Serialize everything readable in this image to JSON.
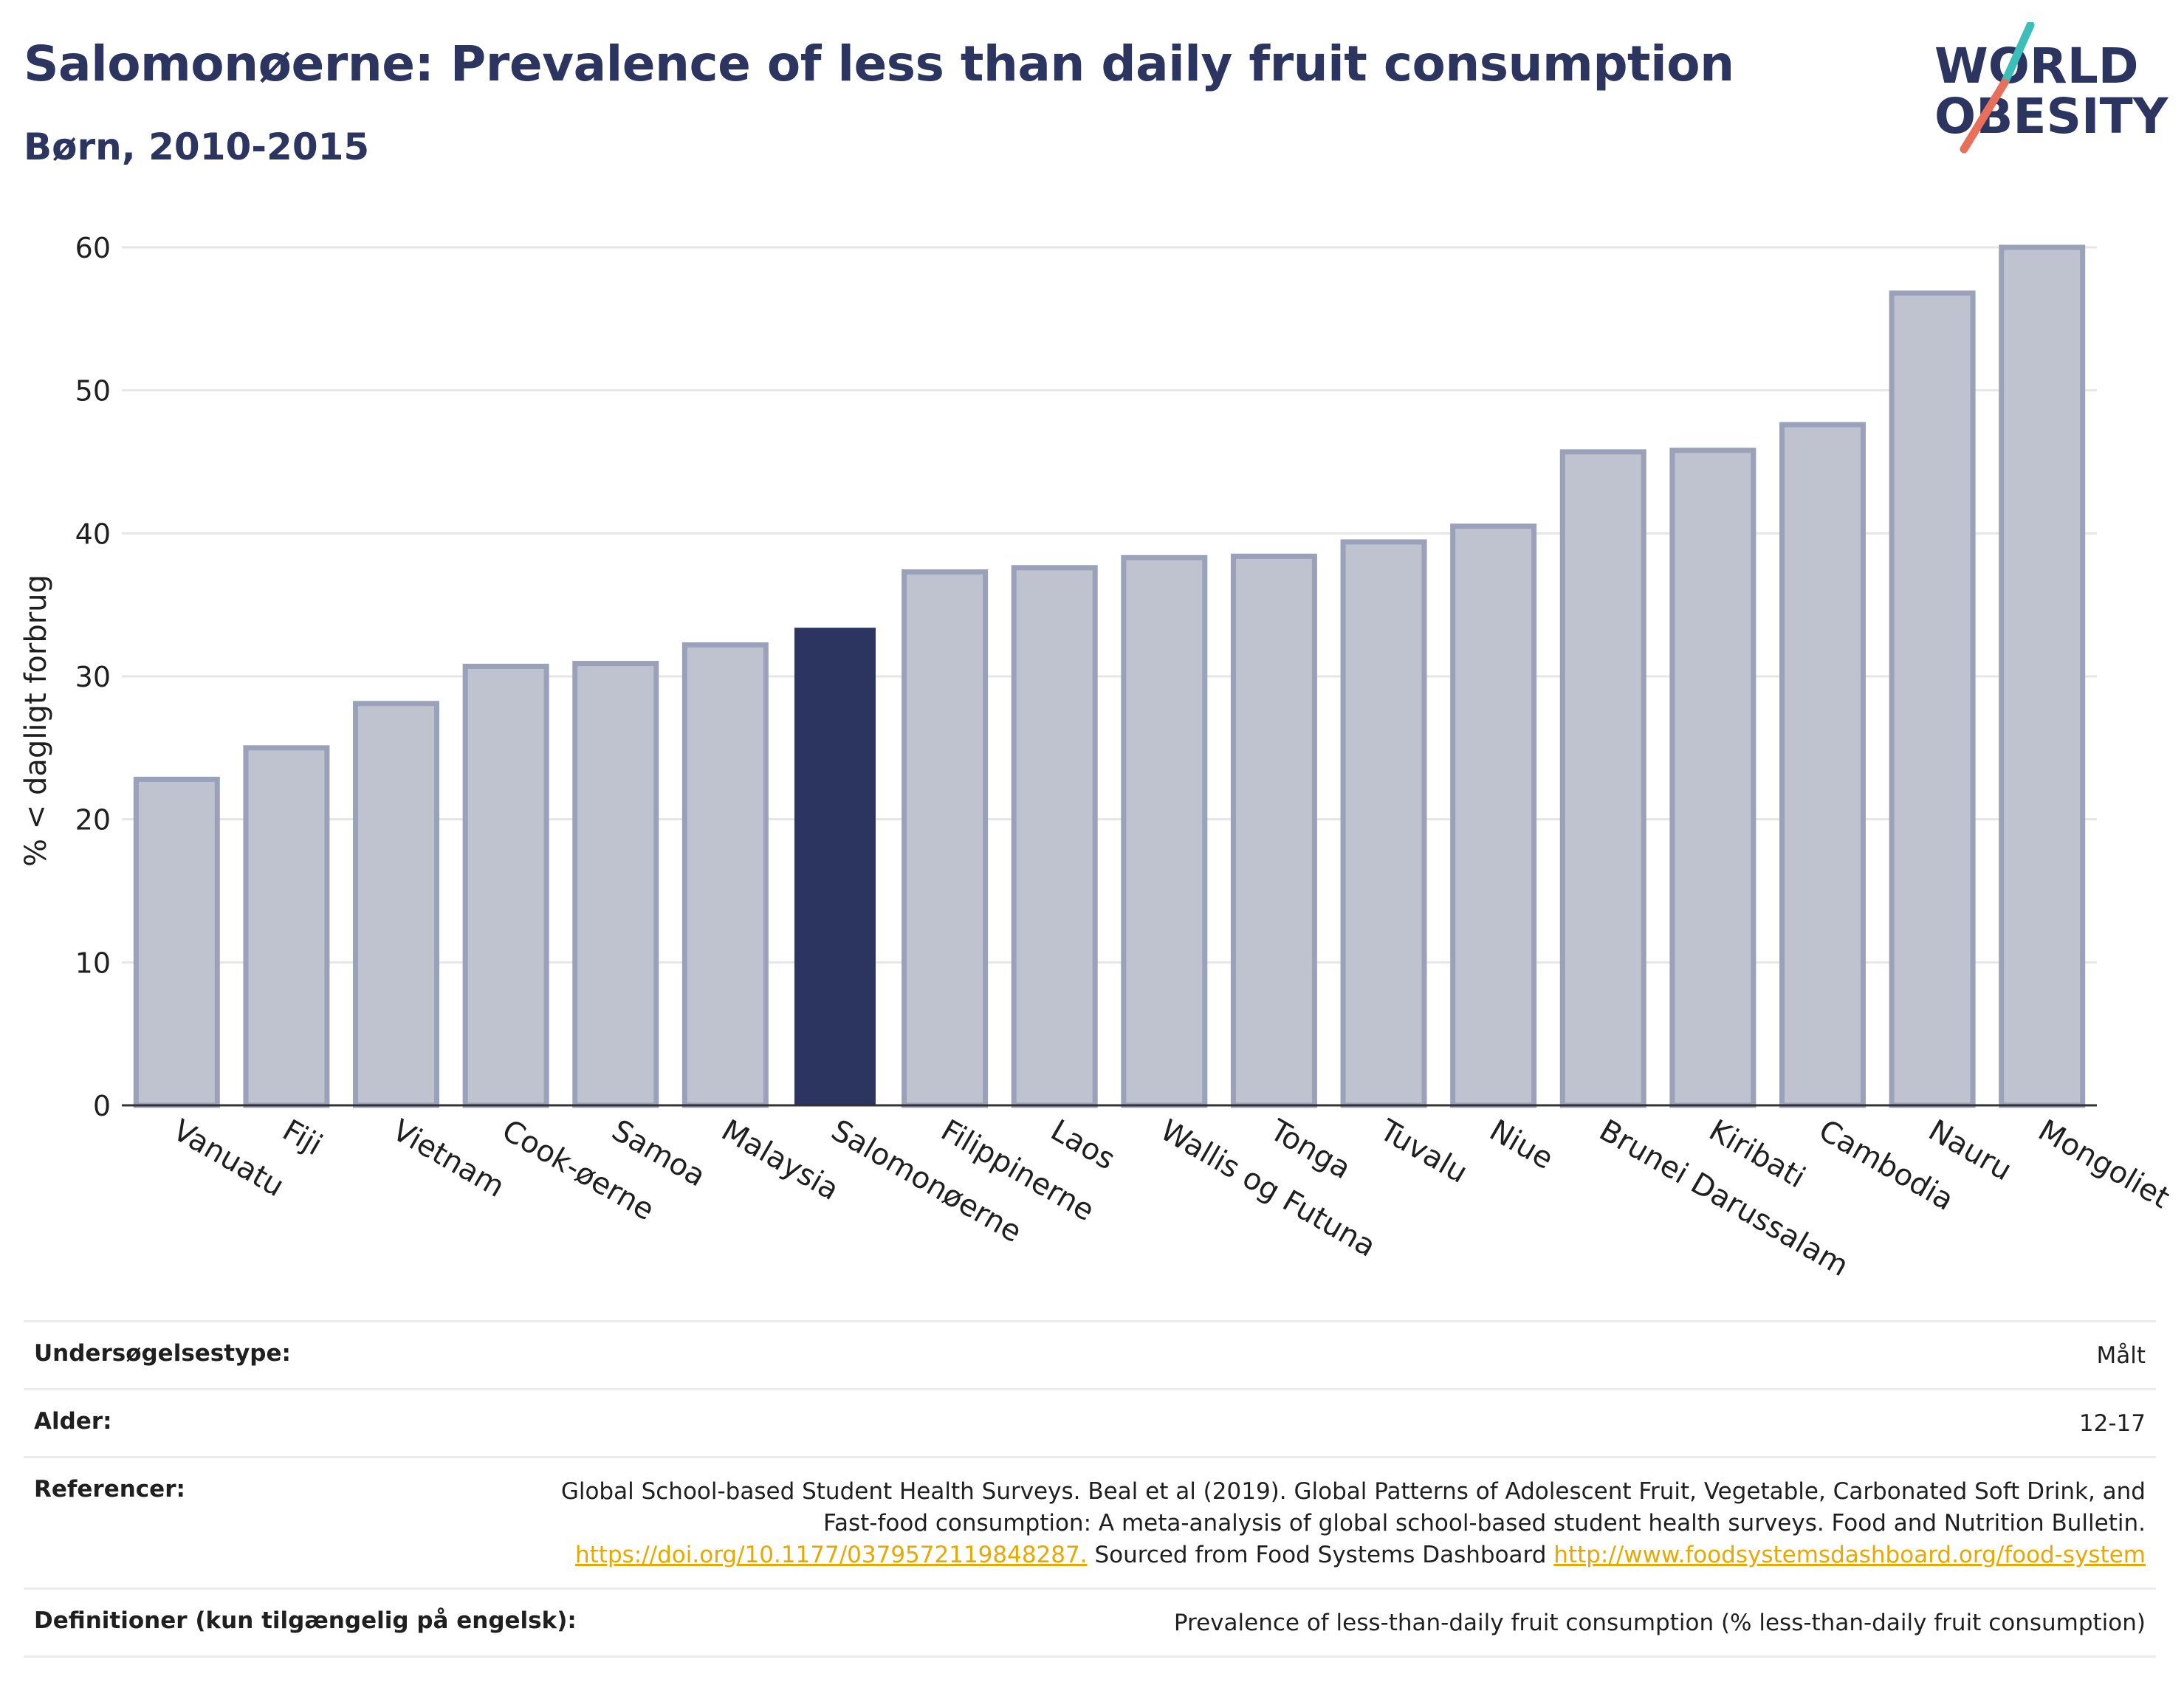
{
  "header": {
    "title": "Salomonøerne: Prevalence of less than daily fruit consumption",
    "subtitle": "Børn, 2010-2015"
  },
  "logo": {
    "line1": "WORLD",
    "line2": "OBESITY",
    "colors": {
      "text": "#2b3560",
      "slash_teal": "#3cbfb8",
      "slash_coral": "#e8705a"
    }
  },
  "chart_data": {
    "type": "bar",
    "title": "",
    "xlabel": "",
    "ylabel": "% < dagligt forbrug",
    "ylim": [
      0,
      60
    ],
    "yticks": [
      0,
      10,
      20,
      30,
      40,
      50,
      60
    ],
    "grid": true,
    "legend": "none",
    "highlight": "Salomonøerne",
    "colors": {
      "bar": "#bfc3cf",
      "bar_edge": "#9aa1b8",
      "highlight": "#2b3560"
    },
    "categories": [
      "Vanuatu",
      "Fiji",
      "Vietnam",
      "Cook-øerne",
      "Samoa",
      "Malaysia",
      "Salomonøerne",
      "Filippinerne",
      "Laos",
      "Wallis og Futuna",
      "Tonga",
      "Tuvalu",
      "Niue",
      "Brunei Darussalam",
      "Kiribati",
      "Cambodia",
      "Nauru",
      "Mongoliet"
    ],
    "values": [
      22.8,
      25.0,
      28.1,
      30.7,
      30.9,
      32.2,
      33.4,
      37.3,
      37.6,
      38.3,
      38.4,
      39.4,
      40.5,
      45.7,
      45.8,
      47.6,
      56.8,
      60.0
    ]
  },
  "info": {
    "survey_type": {
      "label": "Undersøgelsestype:",
      "value": "Målt"
    },
    "age": {
      "label": "Alder:",
      "value": "12-17"
    },
    "references": {
      "label": "Referencer:",
      "text1": "Global School-based Student Health Surveys. Beal et al (2019). Global Patterns of Adolescent Fruit, Vegetable, Carbonated Soft Drink, and Fast-food consumption: A meta-analysis of global school-based student health surveys. Food and Nutrition Bulletin.",
      "link1": "https://doi.org/10.1177/0379572119848287.",
      "text2": "Sourced from Food Systems Dashboard",
      "link2": "http://www.foodsystemsdashboard.org/food-system"
    },
    "definitions": {
      "label": "Definitioner (kun tilgængelig på engelsk):",
      "value": "Prevalence of less-than-daily fruit consumption (% less-than-daily fruit consumption)"
    }
  }
}
